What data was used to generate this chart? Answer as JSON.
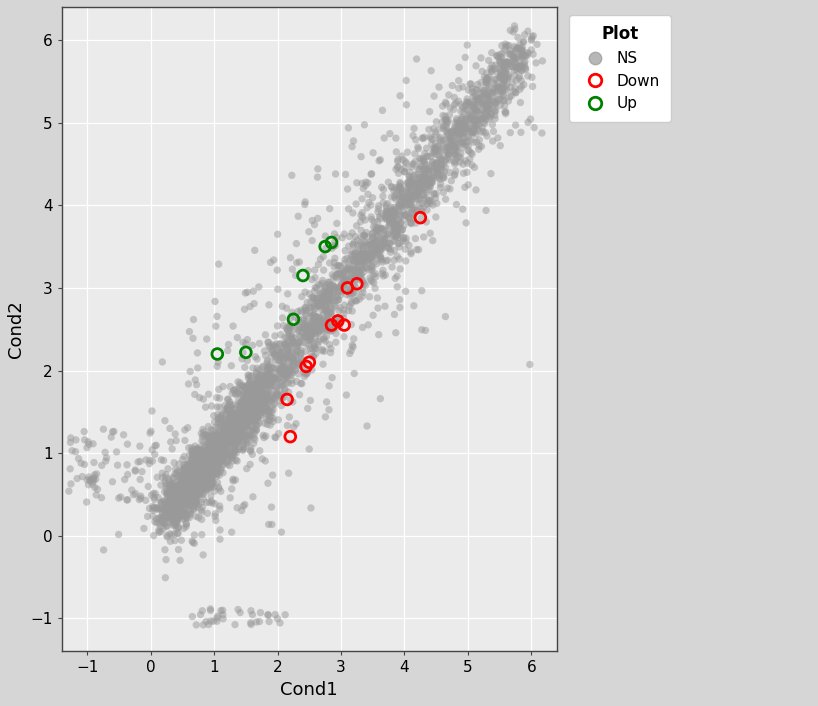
{
  "xlabel": "Cond1",
  "ylabel": "Cond2",
  "xlim": [
    -1.4,
    6.4
  ],
  "ylim": [
    -1.4,
    6.4
  ],
  "xticks": [
    -1,
    0,
    1,
    2,
    3,
    4,
    5,
    6
  ],
  "yticks": [
    -1,
    0,
    1,
    2,
    3,
    4,
    5,
    6
  ],
  "outer_bg": "#e8e8e8",
  "plot_bg": "#ebebeb",
  "ns_facecolor": "#999999",
  "ns_alpha": 0.5,
  "ns_size": 28,
  "down_color": "#ff0000",
  "up_color": "#008000",
  "colored_size": 60,
  "legend_title": "Plot",
  "seed": 123,
  "down_points": [
    [
      2.2,
      1.2
    ],
    [
      2.15,
      1.65
    ],
    [
      2.45,
      2.05
    ],
    [
      2.5,
      2.1
    ],
    [
      2.85,
      2.55
    ],
    [
      2.95,
      2.6
    ],
    [
      3.05,
      2.55
    ],
    [
      3.1,
      3.0
    ],
    [
      3.25,
      3.05
    ],
    [
      4.25,
      3.85
    ]
  ],
  "up_points": [
    [
      1.05,
      2.2
    ],
    [
      1.5,
      2.22
    ],
    [
      2.25,
      2.62
    ],
    [
      2.4,
      3.15
    ],
    [
      2.75,
      3.5
    ],
    [
      2.85,
      3.55
    ]
  ]
}
